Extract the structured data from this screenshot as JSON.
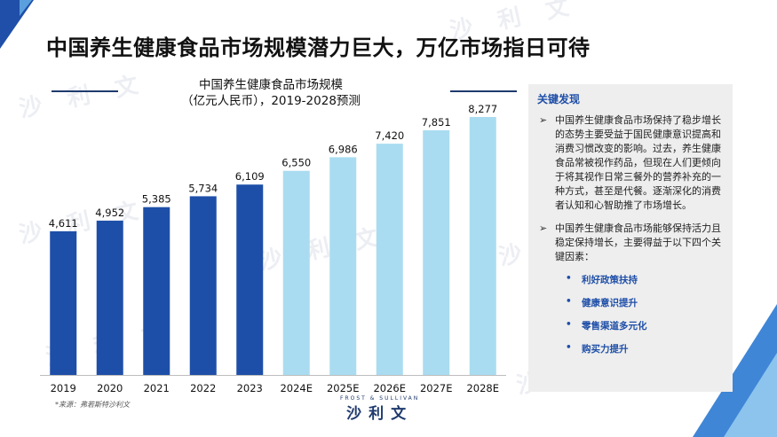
{
  "page_title": "中国养生健康食品市场规模潜力巨大，万亿市场指日可待",
  "chart_data": {
    "type": "bar",
    "title": "中国养生健康食品市场规模",
    "subtitle": "（亿元人民币），2019-2028预测",
    "categories": [
      "2019",
      "2020",
      "2021",
      "2022",
      "2023",
      "2024E",
      "2025E",
      "2026E",
      "2027E",
      "2028E"
    ],
    "values": [
      4611,
      4952,
      5385,
      5734,
      6109,
      6550,
      6986,
      7420,
      7851,
      8277
    ],
    "value_labels": [
      "4,611",
      "4,952",
      "5,385",
      "5,734",
      "6,109",
      "6,550",
      "6,986",
      "7,420",
      "7,851",
      "8,277"
    ],
    "ylim": [
      0,
      8277
    ],
    "grid": false,
    "colors": {
      "actual": "#1e4fa8",
      "forecast": "#a9dcf0"
    },
    "forecast_from_index": 5
  },
  "source": "*来源：弗若斯特沙利文",
  "logo": {
    "en": "FROST & SULLIVAN",
    "zh": "沙利文"
  },
  "watermark": "沙 利 文",
  "panel": {
    "heading": "关键发现",
    "bullet1": "中国养生健康食品市场保持了稳步增长的态势主要受益于国民健康意识提高和消费习惯改变的影响。过去，养生健康食品常被视作药品，但现在人们更倾向于将其视作日常三餐外的营养补充的一种方式，甚至是代餐。逐渐深化的消费者认知和心智助推了市场增长。",
    "bullet2": "中国养生健康食品市场能够保持活力且稳定保持增长，主要得益于以下四个关键因素：",
    "factors": [
      "利好政策扶持",
      "健康意识提升",
      "零售渠道多元化",
      "购买力提升"
    ],
    "arrow": "➢",
    "dot": "•"
  }
}
